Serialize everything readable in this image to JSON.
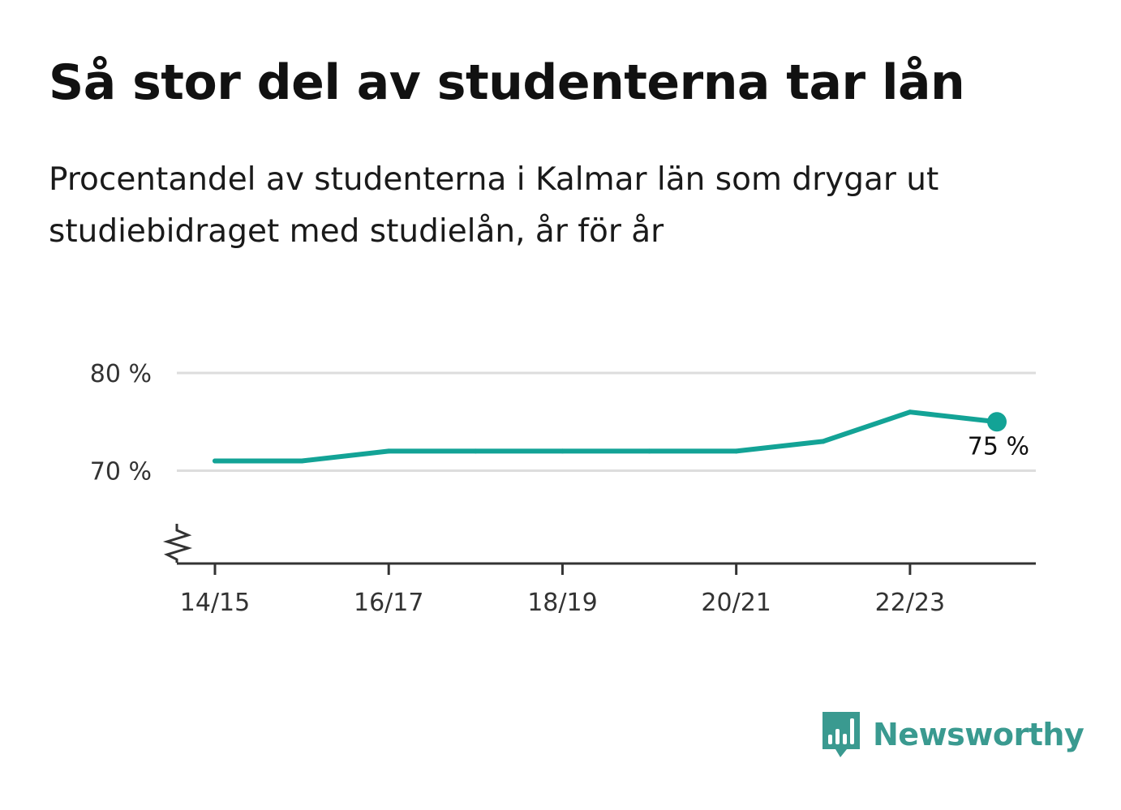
{
  "title": "Så stor del av studenterna tar lån",
  "subtitle": "Procentandel av studenterna i Kalmar län som drygar ut studiebidraget med studielån, år för år",
  "brand": {
    "name": "Newsworthy",
    "color": "#3a9a90",
    "icon": "newsworthy-logo-icon"
  },
  "colors": {
    "line": "#13a396",
    "grid": "#dddddd",
    "axis": "#333333"
  },
  "chart_data": {
    "type": "line",
    "categories": [
      "14/15",
      "15/16",
      "16/17",
      "17/18",
      "18/19",
      "19/20",
      "20/21",
      "21/22",
      "22/23",
      "23/24"
    ],
    "series": [
      {
        "values": [
          71,
          71,
          72,
          72,
          72,
          72,
          72,
          73,
          76,
          75
        ]
      }
    ],
    "x_tick_labels": [
      "14/15",
      "16/17",
      "18/19",
      "20/21",
      "22/23"
    ],
    "y_ticks": [
      70,
      80
    ],
    "y_tick_labels": [
      "70 %",
      "80 %"
    ],
    "ylim": [
      60.5,
      80
    ],
    "y_axis_break": true,
    "grid": true,
    "last_value_label": "75 %",
    "xlabel": "",
    "ylabel": ""
  }
}
